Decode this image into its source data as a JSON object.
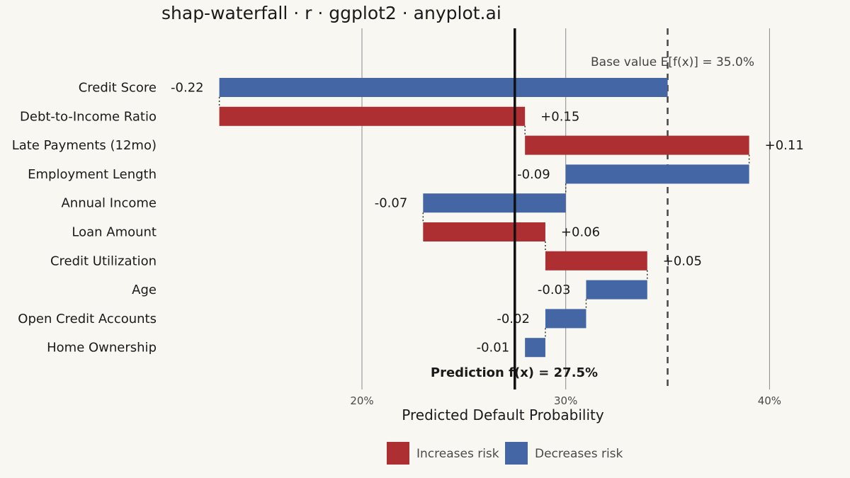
{
  "chart_data": {
    "type": "bar",
    "subtype": "waterfall",
    "title": "shap-waterfall · r · ggplot2 · anyplot.ai",
    "xlabel": "Predicted Default Probability",
    "xlim": [
      0.135,
      0.41
    ],
    "x_ticks": [
      0.2,
      0.3,
      0.4
    ],
    "x_tick_labels": [
      "20%",
      "30%",
      "40%"
    ],
    "grid": true,
    "base_value": 0.35,
    "base_label": "Base value  E[f(x)] = 35.0%",
    "prediction": 0.275,
    "prediction_label": "Prediction  f(x) = 27.5%",
    "features": [
      {
        "name": "Credit Score",
        "value": -0.22,
        "label": "-0.22",
        "start": 0.35,
        "end": 0.13
      },
      {
        "name": "Debt-to-Income Ratio",
        "value": 0.15,
        "label": "+0.15",
        "start": 0.13,
        "end": 0.28
      },
      {
        "name": "Late Payments (12mo)",
        "value": 0.11,
        "label": "+0.11",
        "start": 0.28,
        "end": 0.39
      },
      {
        "name": "Employment Length",
        "value": -0.09,
        "label": "-0.09",
        "start": 0.39,
        "end": 0.3
      },
      {
        "name": "Annual Income",
        "value": -0.07,
        "label": "-0.07",
        "start": 0.3,
        "end": 0.23
      },
      {
        "name": "Loan Amount",
        "value": 0.06,
        "label": "+0.06",
        "start": 0.23,
        "end": 0.29
      },
      {
        "name": "Credit Utilization",
        "value": 0.05,
        "label": "+0.05",
        "start": 0.29,
        "end": 0.34
      },
      {
        "name": "Age",
        "value": -0.03,
        "label": "-0.03",
        "start": 0.34,
        "end": 0.31
      },
      {
        "name": "Open Credit Accounts",
        "value": -0.02,
        "label": "-0.02",
        "start": 0.31,
        "end": 0.29
      },
      {
        "name": "Home Ownership",
        "value": -0.01,
        "label": "-0.01",
        "start": 0.29,
        "end": 0.28
      }
    ],
    "legend": {
      "position": "bottom",
      "items": [
        {
          "name": "Increases risk",
          "color": "#AE2F32"
        },
        {
          "name": "Decreases risk",
          "color": "#4466A4"
        }
      ]
    },
    "colors": {
      "increase": "#AE2F32",
      "decrease": "#4466A4",
      "background": "#F9F7F2"
    }
  }
}
